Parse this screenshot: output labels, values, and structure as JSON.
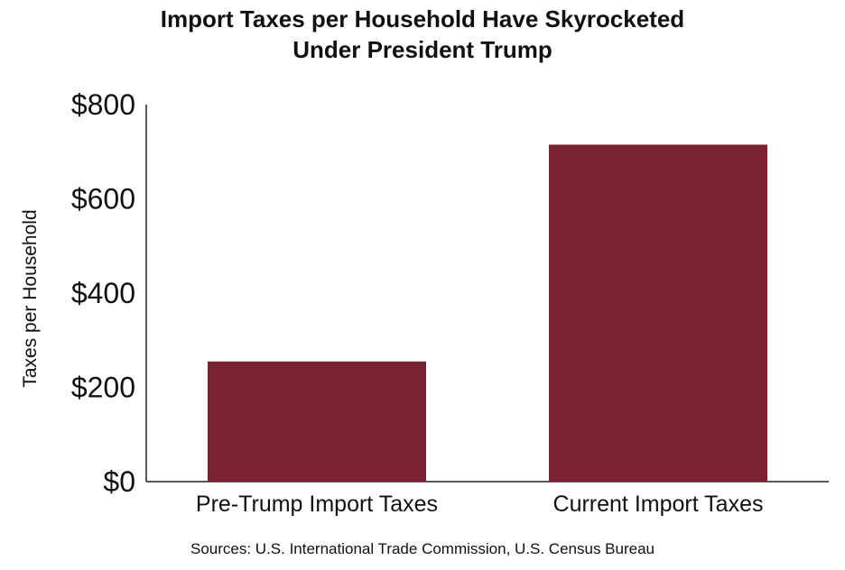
{
  "chart_data": {
    "type": "bar",
    "title_lines": [
      "Import Taxes per Household Have Skyrocketed",
      "Under President Trump"
    ],
    "ylabel": "Taxes per Household",
    "xlabel": "",
    "categories": [
      "Pre-Trump Import Taxes",
      "Current Import Taxes"
    ],
    "values": [
      255,
      715
    ],
    "ylim": [
      0,
      800
    ],
    "yticks": [
      0,
      200,
      400,
      600,
      800
    ],
    "ytick_labels": [
      "$0",
      "$200",
      "$400",
      "$600",
      "$800"
    ],
    "grid": false,
    "legend": "none",
    "bar_color": "#7A2232",
    "source": "Sources: U.S. International Trade Commission, U.S. Census Bureau"
  }
}
